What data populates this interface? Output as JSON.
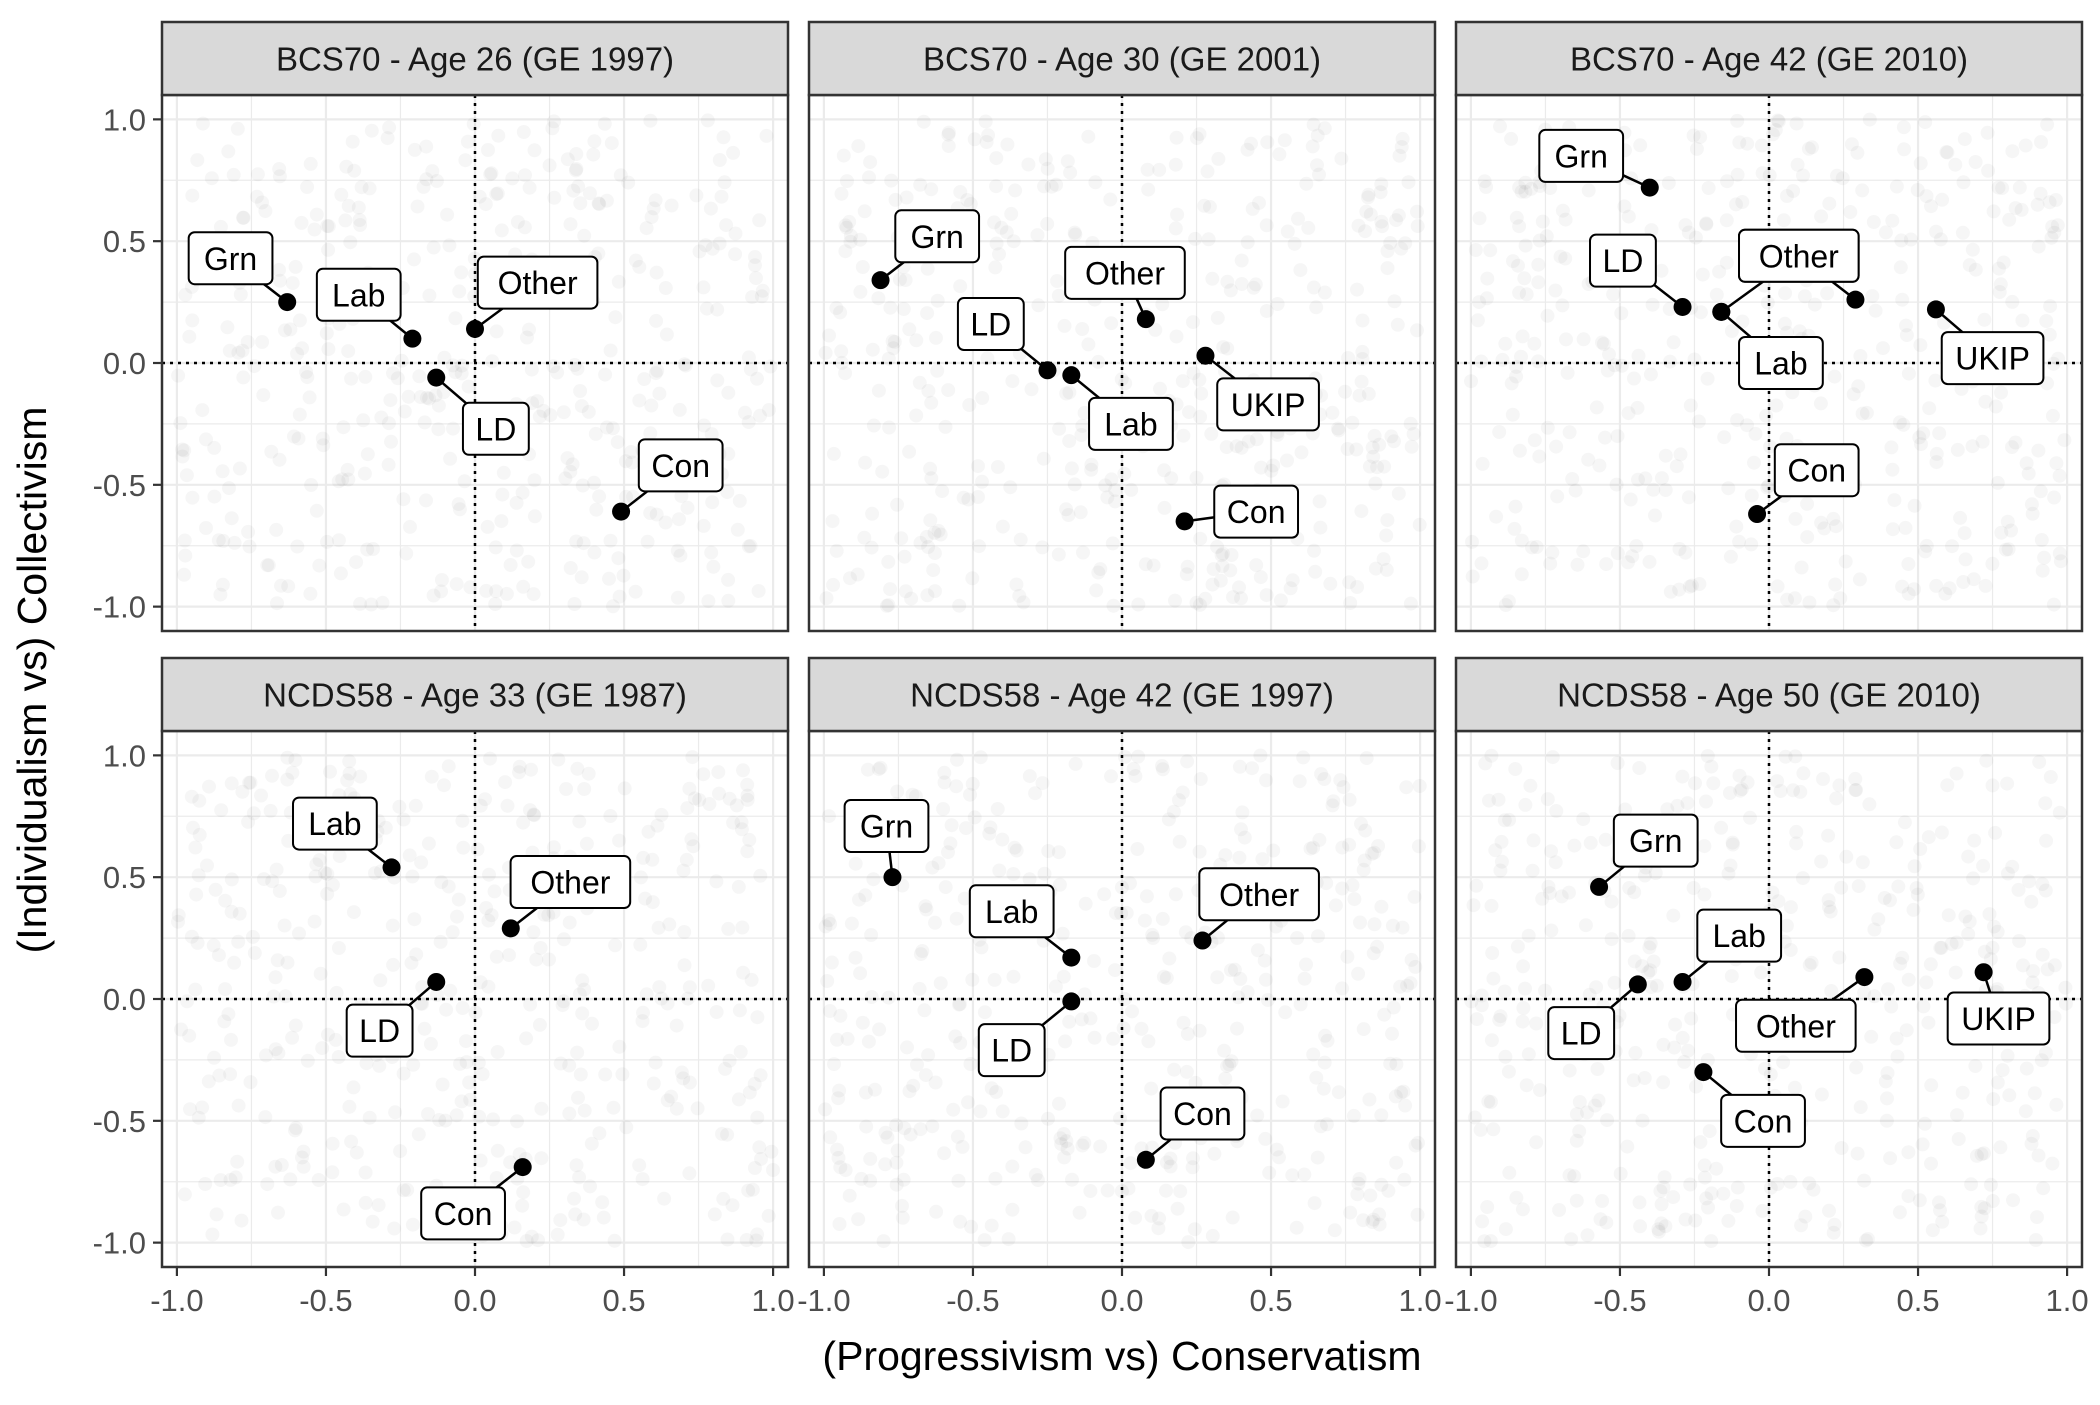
{
  "chart_data": {
    "type": "scatter",
    "xlabel": "(Progressivism vs) Conservatism",
    "ylabel": "(Individualism vs) Collectivism",
    "xlim": [
      -1.05,
      1.05
    ],
    "ylim": [
      -1.1,
      1.1
    ],
    "x_ticks": [
      -1.0,
      -0.5,
      0.0,
      0.5,
      1.0
    ],
    "y_ticks": [
      -1.0,
      -0.5,
      0.0,
      0.5,
      1.0
    ],
    "x_tick_labels": [
      "-1.0",
      "-0.5",
      "0.0",
      "0.5",
      "1.0"
    ],
    "y_tick_labels": [
      "-1.0",
      "-0.5",
      "0.0",
      "0.5",
      "1.0"
    ],
    "reference_lines": {
      "x": 0,
      "y": 0,
      "style": "dotted"
    },
    "grid": true,
    "background_points": "faint individual respondents (alpha ~0.05)",
    "colors": {
      "points": "#000000",
      "strip": "#d9d9d9",
      "grid": "#ebebeb",
      "frame": "#333333"
    },
    "panels": [
      {
        "title": "BCS70 - Age 26 (GE 1997)",
        "points": [
          {
            "party": "Grn",
            "x": -0.63,
            "y": 0.25,
            "label_x": -0.82,
            "label_y": 0.43
          },
          {
            "party": "Lab",
            "x": -0.21,
            "y": 0.1,
            "label_x": -0.39,
            "label_y": 0.28
          },
          {
            "party": "Other",
            "x": 0.0,
            "y": 0.14,
            "label_x": 0.21,
            "label_y": 0.33
          },
          {
            "party": "LD",
            "x": -0.13,
            "y": -0.06,
            "label_x": 0.07,
            "label_y": -0.27
          },
          {
            "party": "Con",
            "x": 0.49,
            "y": -0.61,
            "label_x": 0.69,
            "label_y": -0.42
          }
        ]
      },
      {
        "title": "BCS70 - Age 30 (GE 2001)",
        "points": [
          {
            "party": "Grn",
            "x": -0.81,
            "y": 0.34,
            "label_x": -0.62,
            "label_y": 0.52
          },
          {
            "party": "Other",
            "x": 0.08,
            "y": 0.18,
            "label_x": 0.01,
            "label_y": 0.37
          },
          {
            "party": "LD",
            "x": -0.25,
            "y": -0.03,
            "label_x": -0.44,
            "label_y": 0.16
          },
          {
            "party": "Lab",
            "x": -0.17,
            "y": -0.05,
            "label_x": 0.03,
            "label_y": -0.25
          },
          {
            "party": "UKIP",
            "x": 0.28,
            "y": 0.03,
            "label_x": 0.49,
            "label_y": -0.17
          },
          {
            "party": "Con",
            "x": 0.21,
            "y": -0.65,
            "label_x": 0.45,
            "label_y": -0.61
          }
        ]
      },
      {
        "title": "BCS70 - Age 42 (GE 2010)",
        "points": [
          {
            "party": "Grn",
            "x": -0.4,
            "y": 0.72,
            "label_x": -0.63,
            "label_y": 0.85
          },
          {
            "party": "LD",
            "x": -0.29,
            "y": 0.23,
            "label_x": -0.49,
            "label_y": 0.42
          },
          {
            "party": "Other",
            "x": -0.16,
            "y": 0.21,
            "label_x": 0.1,
            "label_y": 0.44
          },
          {
            "party": "Other",
            "x": 0.29,
            "y": 0.26,
            "label_x": 0.1,
            "label_y": 0.44
          },
          {
            "party": "Lab",
            "x": -0.16,
            "y": 0.21,
            "label_x": 0.04,
            "label_y": 0.0
          },
          {
            "party": "UKIP",
            "x": 0.56,
            "y": 0.22,
            "label_x": 0.75,
            "label_y": 0.02
          },
          {
            "party": "Con",
            "x": -0.04,
            "y": -0.62,
            "label_x": 0.16,
            "label_y": -0.44
          }
        ]
      },
      {
        "title": "NCDS58 - Age 33 (GE 1987)",
        "points": [
          {
            "party": "Lab",
            "x": -0.28,
            "y": 0.54,
            "label_x": -0.47,
            "label_y": 0.72
          },
          {
            "party": "Other",
            "x": 0.12,
            "y": 0.29,
            "label_x": 0.32,
            "label_y": 0.48
          },
          {
            "party": "LD",
            "x": -0.13,
            "y": 0.07,
            "label_x": -0.32,
            "label_y": -0.13
          },
          {
            "party": "Con",
            "x": 0.16,
            "y": -0.69,
            "label_x": -0.04,
            "label_y": -0.88
          }
        ]
      },
      {
        "title": "NCDS58 - Age 42 (GE 1997)",
        "points": [
          {
            "party": "Grn",
            "x": -0.77,
            "y": 0.5,
            "label_x": -0.79,
            "label_y": 0.71
          },
          {
            "party": "Lab",
            "x": -0.17,
            "y": 0.17,
            "label_x": -0.37,
            "label_y": 0.36
          },
          {
            "party": "Other",
            "x": 0.27,
            "y": 0.24,
            "label_x": 0.46,
            "label_y": 0.43
          },
          {
            "party": "LD",
            "x": -0.17,
            "y": -0.01,
            "label_x": -0.37,
            "label_y": -0.21
          },
          {
            "party": "Con",
            "x": 0.08,
            "y": -0.66,
            "label_x": 0.27,
            "label_y": -0.47
          }
        ]
      },
      {
        "title": "NCDS58 - Age 50 (GE 2010)",
        "points": [
          {
            "party": "Grn",
            "x": -0.57,
            "y": 0.46,
            "label_x": -0.38,
            "label_y": 0.65
          },
          {
            "party": "LD",
            "x": -0.44,
            "y": 0.06,
            "label_x": -0.63,
            "label_y": -0.14
          },
          {
            "party": "Lab",
            "x": -0.29,
            "y": 0.07,
            "label_x": -0.1,
            "label_y": 0.26
          },
          {
            "party": "Other",
            "x": 0.32,
            "y": 0.09,
            "label_x": 0.09,
            "label_y": -0.11
          },
          {
            "party": "Con",
            "x": -0.22,
            "y": -0.3,
            "label_x": -0.02,
            "label_y": -0.5
          },
          {
            "party": "UKIP",
            "x": 0.72,
            "y": 0.11,
            "label_x": 0.77,
            "label_y": -0.08
          }
        ]
      }
    ]
  }
}
